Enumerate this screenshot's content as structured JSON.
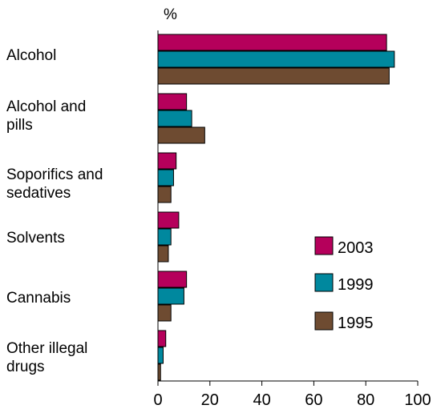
{
  "chart_data": {
    "type": "bar",
    "orientation": "horizontal",
    "unit_label": "%",
    "categories": [
      "Alcohol",
      "Alcohol and\npills",
      "Soporifics and\nsedatives",
      "Solvents",
      "Cannabis",
      "Other illegal\ndrugs"
    ],
    "series": [
      {
        "name": "2003",
        "color": "#b5005b",
        "values": [
          88,
          11,
          7,
          8,
          11,
          3
        ]
      },
      {
        "name": "1999",
        "color": "#00889e",
        "values": [
          91,
          13,
          6,
          5,
          10,
          2
        ]
      },
      {
        "name": "1995",
        "color": "#6e4b31",
        "values": [
          89,
          18,
          5,
          4,
          5,
          1
        ]
      }
    ],
    "xlim": [
      0,
      100
    ],
    "xticks": [
      "0",
      "20",
      "40",
      "60",
      "80",
      "100"
    ],
    "grid": false,
    "legend_position": "right"
  }
}
